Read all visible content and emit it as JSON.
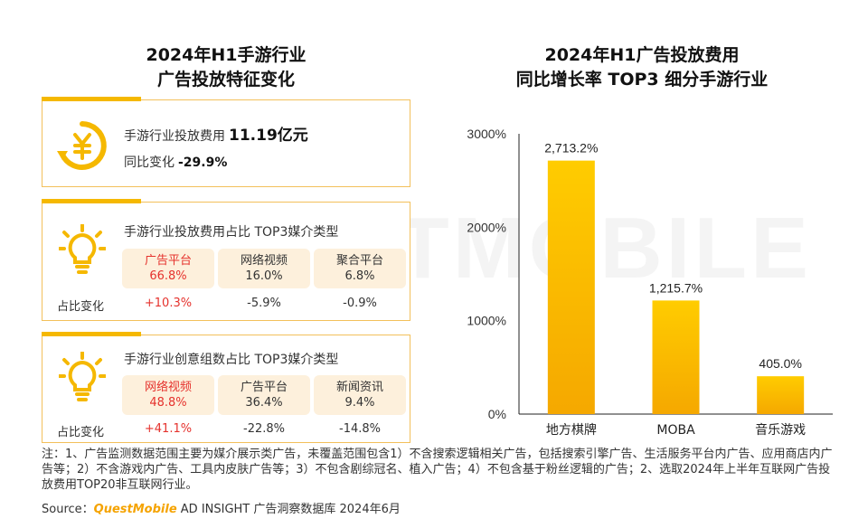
{
  "watermark": "QUESTMOBILE",
  "left_title": [
    "2024年H1手游行业",
    "广告投放特征变化"
  ],
  "right_title": [
    "2024年H1广告投放费用",
    "同比增长率 TOP3 细分手游行业"
  ],
  "card1": {
    "spend_label": "手游行业投放费用",
    "spend_value": "11.19亿元",
    "yoy_label": "同比变化",
    "yoy_value": "-29.9%"
  },
  "card2": {
    "heading": "手游行业投放费用占比  TOP3媒介类型",
    "change_label": "占比变化",
    "media": [
      {
        "name": "广告平台",
        "value": "66.8%",
        "change": "+10.3%"
      },
      {
        "name": "网络视频",
        "value": "16.0%",
        "change": "-5.9%"
      },
      {
        "name": "聚合平台",
        "value": "6.8%",
        "change": "-0.9%"
      }
    ]
  },
  "card3": {
    "heading": "手游行业创意组数占比  TOP3媒介类型",
    "change_label": "占比变化",
    "media": [
      {
        "name": "网络视频",
        "value": "48.8%",
        "change": "+41.1%"
      },
      {
        "name": "广告平台",
        "value": "36.4%",
        "change": "-22.8%"
      },
      {
        "name": "新闻资讯",
        "value": "9.4%",
        "change": "-14.8%"
      }
    ]
  },
  "colors": {
    "accent": "#f5b800",
    "accent_light": "#fdf0dc",
    "positive": "#e5322d",
    "border": "#f3c05b"
  },
  "icons": {
    "card1": "yen-cycle-icon",
    "card2": "lightbulb-icon",
    "card3": "lightbulb-icon"
  },
  "chart_data": {
    "type": "bar",
    "categories": [
      "地方棋牌",
      "MOBA",
      "音乐游戏"
    ],
    "values": [
      2713.2,
      1215.7,
      405.0
    ],
    "value_labels": [
      "2,713.2%",
      "1,215.7%",
      "405.0%"
    ],
    "ylim": [
      0,
      3000
    ],
    "yticks": [
      0,
      1000,
      2000,
      3000
    ],
    "ytick_labels": [
      "0%",
      "1000%",
      "2000%",
      "3000%"
    ],
    "grid": false,
    "bar_color": "#f5b800"
  },
  "notes": "注：1、广告监测数据范围主要为媒介展示类广告，未覆盖范围包含1）不含搜索逻辑相关广告，包括搜索引擎广告、生活服务平台内广告、应用商店内广告等；2）不含游戏内广告、工具内皮肤广告等；3）不包含剧综冠名、植入广告；4）不包含基于粉丝逻辑的广告；2、选取2024年上半年互联网广告投放费用TOP20非互联网行业。",
  "source": {
    "label": "Source：",
    "brand": "QuestMobile",
    "text": "AD INSIGHT 广告洞察数据库 2024年6月"
  }
}
